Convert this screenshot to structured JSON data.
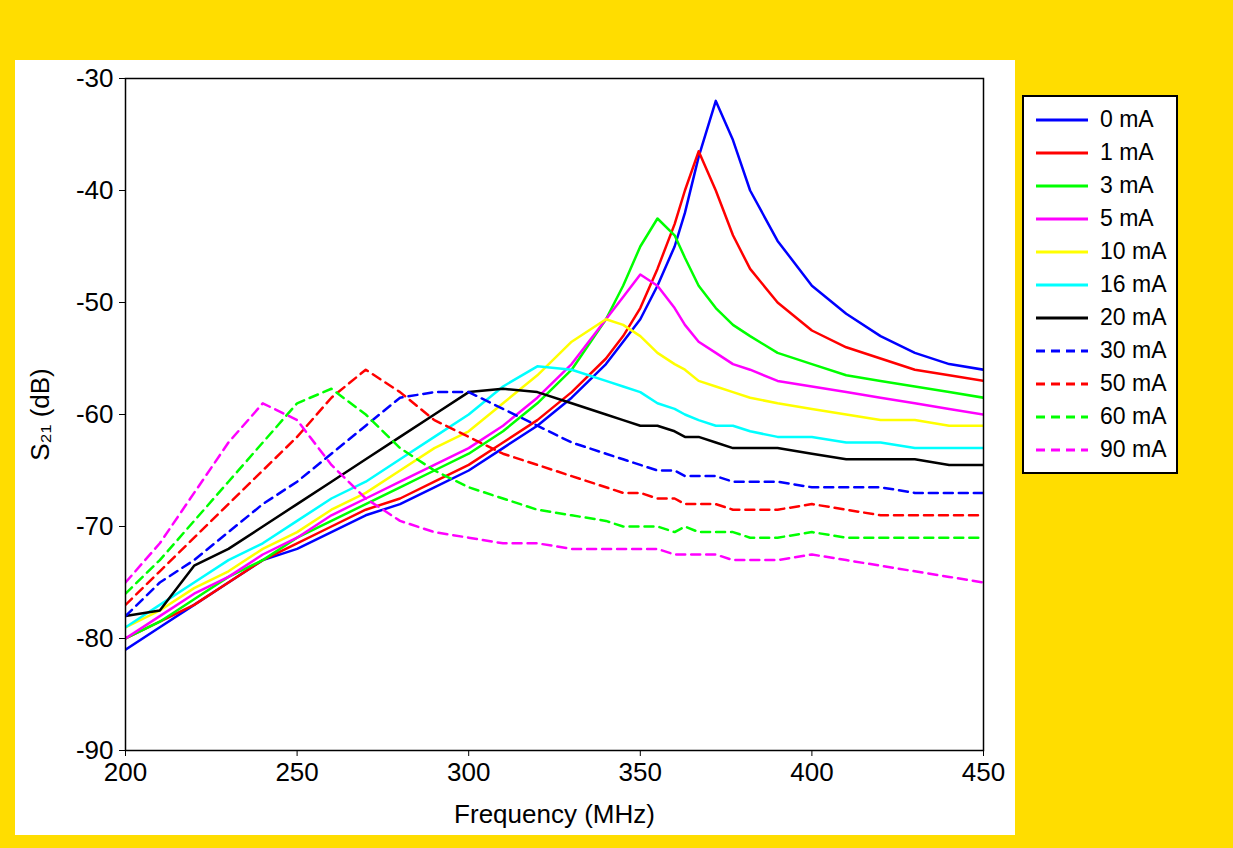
{
  "chart_data": {
    "type": "line",
    "x_label": "Frequency (MHz)",
    "y_label": "S₂₁ (dB)",
    "xlim": [
      200,
      450
    ],
    "xticks": [
      200,
      250,
      300,
      350,
      400,
      450
    ],
    "ylim": [
      -90,
      -30
    ],
    "yticks": [
      -90,
      -80,
      -70,
      -60,
      -50,
      -40,
      -30
    ],
    "grid": false,
    "legend": "right",
    "x": [
      200,
      210,
      220,
      230,
      240,
      250,
      260,
      270,
      280,
      290,
      300,
      310,
      320,
      330,
      340,
      345,
      350,
      355,
      360,
      363,
      367,
      372,
      377,
      382,
      390,
      400,
      410,
      420,
      430,
      440,
      450
    ],
    "series": [
      {
        "name": "0 mA",
        "color": "#0000ff",
        "line_style": "solid",
        "values": [
          -81,
          -79,
          -77,
          -75,
          -73,
          -72,
          -70.5,
          -69,
          -68,
          -66.5,
          -65,
          -63,
          -61,
          -58.5,
          -55.5,
          -53.5,
          -51.5,
          -48.5,
          -45,
          -42,
          -37,
          -32,
          -35.5,
          -40,
          -44.5,
          -48.5,
          -51,
          -53,
          -54.5,
          -55.5,
          -56
        ]
      },
      {
        "name": "1 mA",
        "color": "#ff0000",
        "line_style": "solid",
        "values": [
          -80,
          -78.5,
          -77,
          -75,
          -73,
          -71.5,
          -70,
          -68.5,
          -67.5,
          -66,
          -64.5,
          -62.5,
          -60.5,
          -58,
          -55,
          -53,
          -50.5,
          -47,
          -43,
          -40,
          -36.5,
          -40,
          -44,
          -47,
          -50,
          -52.5,
          -54,
          -55,
          -56,
          -56.5,
          -57
        ]
      },
      {
        "name": "3 mA",
        "color": "#00ff00",
        "line_style": "solid",
        "values": [
          -80,
          -78.5,
          -76.5,
          -74.5,
          -73,
          -71,
          -69.5,
          -68,
          -66.5,
          -65,
          -63.5,
          -61.5,
          -59,
          -56,
          -51.5,
          -48.5,
          -45,
          -42.5,
          -44,
          -46,
          -48.5,
          -50.5,
          -52,
          -53,
          -54.5,
          -55.5,
          -56.5,
          -57,
          -57.5,
          -58,
          -58.5
        ]
      },
      {
        "name": "5 mA",
        "color": "#ff00ff",
        "line_style": "solid",
        "values": [
          -80,
          -78,
          -76,
          -74.5,
          -72.5,
          -71,
          -69,
          -67.5,
          -66,
          -64.5,
          -63,
          -61,
          -58.5,
          -55.5,
          -51.5,
          -49.5,
          -47.5,
          -48.5,
          -50.5,
          -52,
          -53.5,
          -54.5,
          -55.5,
          -56,
          -57,
          -57.5,
          -58,
          -58.5,
          -59,
          -59.5,
          -60
        ]
      },
      {
        "name": "10 mA",
        "color": "#ffff00",
        "line_style": "solid",
        "values": [
          -79,
          -77.5,
          -75.5,
          -74,
          -72,
          -70.5,
          -68.5,
          -67,
          -65,
          -63,
          -61.5,
          -59,
          -56.5,
          -53.5,
          -51.5,
          -52,
          -53,
          -54.5,
          -55.5,
          -56,
          -57,
          -57.5,
          -58,
          -58.5,
          -59,
          -59.5,
          -60,
          -60.5,
          -60.5,
          -61,
          -61
        ]
      },
      {
        "name": "16 mA",
        "color": "#00ffff",
        "line_style": "solid",
        "values": [
          -79,
          -77,
          -75,
          -73,
          -71.5,
          -69.5,
          -67.5,
          -66,
          -64,
          -62,
          -60,
          -57.5,
          -55.7,
          -56,
          -57,
          -57.5,
          -58,
          -59,
          -59.5,
          -60,
          -60.5,
          -61,
          -61,
          -61.5,
          -62,
          -62,
          -62.5,
          -62.5,
          -63,
          -63,
          -63
        ]
      },
      {
        "name": "20 mA",
        "color": "#000000",
        "line_style": "solid",
        "values": [
          -78,
          -77.5,
          -73.5,
          -72,
          -70,
          -68,
          -66,
          -64,
          -62,
          -60,
          -58,
          -57.7,
          -58,
          -59,
          -60,
          -60.5,
          -61,
          -61,
          -61.5,
          -62,
          -62,
          -62.5,
          -63,
          -63,
          -63,
          -63.5,
          -64,
          -64,
          -64,
          -64.5,
          -64.5
        ]
      },
      {
        "name": "30 mA",
        "color": "#0000ff",
        "line_style": "dashed",
        "values": [
          -78,
          -75,
          -73,
          -70.5,
          -68,
          -66,
          -63.5,
          -61,
          -58.5,
          -58,
          -58,
          -59.5,
          -61,
          -62.5,
          -63.5,
          -64,
          -64.5,
          -65,
          -65,
          -65.5,
          -65.5,
          -65.5,
          -66,
          -66,
          -66,
          -66.5,
          -66.5,
          -66.5,
          -67,
          -67,
          -67
        ]
      },
      {
        "name": "50 mA",
        "color": "#ff0000",
        "line_style": "dashed",
        "values": [
          -77,
          -74,
          -71,
          -68,
          -65,
          -62,
          -58.5,
          -56,
          -58,
          -60.5,
          -62,
          -63.5,
          -64.5,
          -65.5,
          -66.5,
          -67,
          -67,
          -67.5,
          -67.5,
          -68,
          -68,
          -68,
          -68.5,
          -68.5,
          -68.5,
          -68,
          -68.5,
          -69,
          -69,
          -69,
          -69
        ]
      },
      {
        "name": "60 mA",
        "color": "#00ff00",
        "line_style": "dashed",
        "values": [
          -76,
          -73,
          -69.5,
          -66,
          -62.5,
          -59,
          -57.7,
          -60,
          -63,
          -65,
          -66.5,
          -67.5,
          -68.5,
          -69,
          -69.5,
          -70,
          -70,
          -70,
          -70.5,
          -70,
          -70.5,
          -70.5,
          -70.5,
          -71,
          -71,
          -70.5,
          -71,
          -71,
          -71,
          -71,
          -71
        ]
      },
      {
        "name": "90 mA",
        "color": "#ff00ff",
        "line_style": "dashed",
        "values": [
          -75,
          -71.5,
          -67,
          -62.5,
          -59,
          -60.5,
          -64.5,
          -67.5,
          -69.5,
          -70.5,
          -71,
          -71.5,
          -71.5,
          -72,
          -72,
          -72,
          -72,
          -72,
          -72.5,
          -72.5,
          -72.5,
          -72.5,
          -73,
          -73,
          -73,
          -72.5,
          -73,
          -73.5,
          -74,
          -74.5,
          -75
        ]
      }
    ]
  }
}
